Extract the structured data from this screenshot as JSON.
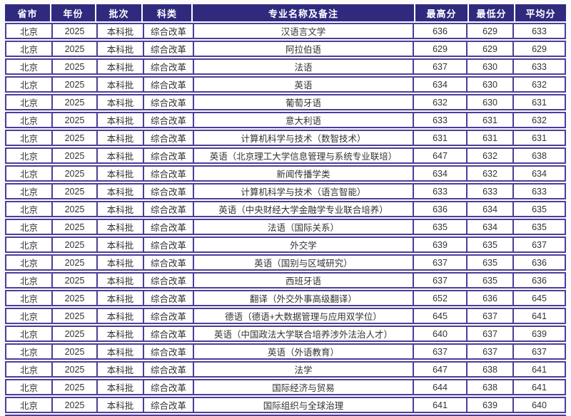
{
  "colors": {
    "header_bg": "#2F2A7E",
    "header_text": "#FFFFFF",
    "row_border": "#4B3E9B",
    "row_bg": "#FFFFFF",
    "cell_text": "#333333"
  },
  "table": {
    "headers": [
      {
        "key": "province",
        "label": "省市"
      },
      {
        "key": "year",
        "label": "年份"
      },
      {
        "key": "batch",
        "label": "批次"
      },
      {
        "key": "category",
        "label": "科类"
      },
      {
        "key": "major",
        "label": "专业名称及备注"
      },
      {
        "key": "max",
        "label": "最高分"
      },
      {
        "key": "min",
        "label": "最低分"
      },
      {
        "key": "avg",
        "label": "平均分"
      }
    ],
    "rows": [
      [
        "北京",
        "2025",
        "本科批",
        "综合改革",
        "汉语言文学",
        "636",
        "629",
        "633"
      ],
      [
        "北京",
        "2025",
        "本科批",
        "综合改革",
        "阿拉伯语",
        "629",
        "629",
        "629"
      ],
      [
        "北京",
        "2025",
        "本科批",
        "综合改革",
        "法语",
        "637",
        "630",
        "633"
      ],
      [
        "北京",
        "2025",
        "本科批",
        "综合改革",
        "英语",
        "634",
        "630",
        "632"
      ],
      [
        "北京",
        "2025",
        "本科批",
        "综合改革",
        "葡萄牙语",
        "632",
        "630",
        "631"
      ],
      [
        "北京",
        "2025",
        "本科批",
        "综合改革",
        "意大利语",
        "633",
        "631",
        "632"
      ],
      [
        "北京",
        "2025",
        "本科批",
        "综合改革",
        "计算机科学与技术（数智技术）",
        "631",
        "631",
        "631"
      ],
      [
        "北京",
        "2025",
        "本科批",
        "综合改革",
        "英语（北京理工大学信息管理与系统专业联培）",
        "647",
        "632",
        "638"
      ],
      [
        "北京",
        "2025",
        "本科批",
        "综合改革",
        "新闻传播学类",
        "634",
        "632",
        "634"
      ],
      [
        "北京",
        "2025",
        "本科批",
        "综合改革",
        "计算机科学与技术（语言智能）",
        "633",
        "633",
        "633"
      ],
      [
        "北京",
        "2025",
        "本科批",
        "综合改革",
        "英语（中央财经大学金融学专业联合培养）",
        "636",
        "634",
        "635"
      ],
      [
        "北京",
        "2025",
        "本科批",
        "综合改革",
        "法语（国际关系）",
        "635",
        "634",
        "635"
      ],
      [
        "北京",
        "2025",
        "本科批",
        "综合改革",
        "外交学",
        "639",
        "635",
        "637"
      ],
      [
        "北京",
        "2025",
        "本科批",
        "综合改革",
        "英语（国别与区域研究）",
        "637",
        "635",
        "636"
      ],
      [
        "北京",
        "2025",
        "本科批",
        "综合改革",
        "西班牙语",
        "637",
        "635",
        "636"
      ],
      [
        "北京",
        "2025",
        "本科批",
        "综合改革",
        "翻译（外交外事高级翻译）",
        "652",
        "636",
        "645"
      ],
      [
        "北京",
        "2025",
        "本科批",
        "综合改革",
        "德语（德语+大数据管理与应用双学位）",
        "645",
        "637",
        "641"
      ],
      [
        "北京",
        "2025",
        "本科批",
        "综合改革",
        "英语（中国政法大学联合培养涉外法治人才）",
        "640",
        "637",
        "639"
      ],
      [
        "北京",
        "2025",
        "本科批",
        "综合改革",
        "英语（外语教育）",
        "637",
        "637",
        "637"
      ],
      [
        "北京",
        "2025",
        "本科批",
        "综合改革",
        "法学",
        "647",
        "638",
        "641"
      ],
      [
        "北京",
        "2025",
        "本科批",
        "综合改革",
        "国际经济与贸易",
        "644",
        "638",
        "641"
      ],
      [
        "北京",
        "2025",
        "本科批",
        "综合改革",
        "国际组织与全球治理",
        "641",
        "639",
        "640"
      ]
    ]
  }
}
